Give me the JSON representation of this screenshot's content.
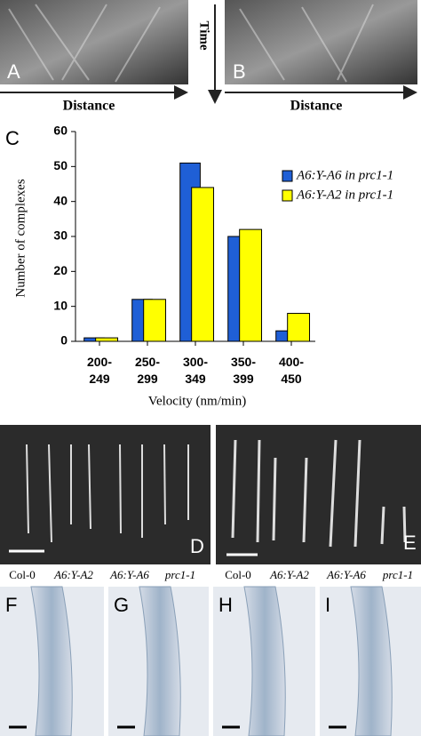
{
  "chart_data": {
    "type": "bar",
    "panel_label": "C",
    "categories": [
      "200-249",
      "250-299",
      "300-349",
      "350-399",
      "400-450"
    ],
    "series": [
      {
        "name": "A6:Y-A6 in prc1-1",
        "color": "#1f5fd6",
        "values": [
          1,
          12,
          51,
          30,
          3
        ]
      },
      {
        "name": "A6:Y-A2 in prc1-1",
        "color": "#ffff00",
        "values": [
          1,
          12,
          44,
          32,
          8
        ]
      }
    ],
    "ylim": [
      0,
      60
    ],
    "yticks": [
      0,
      10,
      20,
      30,
      40,
      50,
      60
    ],
    "ylabel": "Number of complexes",
    "xlabel": "Velocity (nm/min)",
    "legend": "top-right"
  },
  "kymographs": {
    "labels": [
      "A",
      "B"
    ],
    "axis_time": "Time",
    "axis_distance": [
      "Distance",
      "Distance"
    ]
  },
  "seedlings": {
    "labels": [
      "D",
      "E"
    ],
    "genotypes": [
      "Col-0",
      "A6:Y-A2",
      "A6:Y-A6",
      "prc1-1",
      "Col-0",
      "A6:Y-A2",
      "A6:Y-A6",
      "prc1-1"
    ]
  },
  "roots": {
    "labels": [
      "F",
      "G",
      "H",
      "I"
    ]
  }
}
